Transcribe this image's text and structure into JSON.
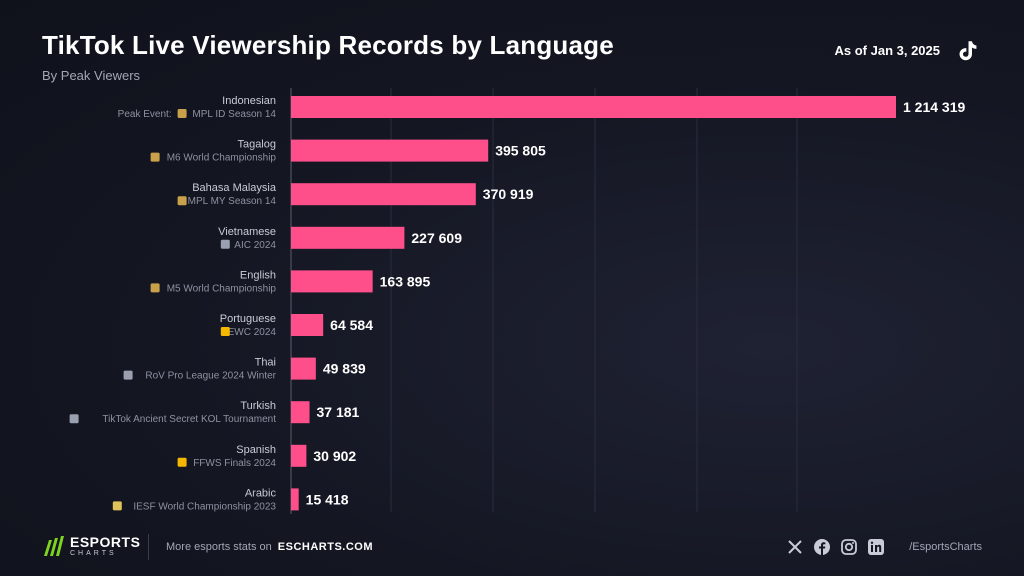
{
  "header": {
    "title": "TikTok Live Viewership Records by Language",
    "subtitle": "By Peak Viewers",
    "as_of": "As of Jan 3, 2025"
  },
  "chart_data": {
    "type": "bar",
    "orientation": "horizontal",
    "title": "TikTok Live Viewership Records by Language",
    "subtitle": "By Peak Viewers",
    "categories": [
      "Indonesian",
      "Tagalog",
      "Bahasa Malaysia",
      "Vietnamese",
      "English",
      "Portuguese",
      "Thai",
      "Turkish",
      "Spanish",
      "Arabic"
    ],
    "events": [
      "MPL ID Season 14",
      "M6 World Championship",
      "MPL MY Season 14",
      "AIC 2024",
      "M5 World Championship",
      "EWC 2024",
      "RoV Pro League 2024 Winter",
      "TikTok Ancient Secret KOL Tournament",
      "FFWS Finals 2024",
      "IESF World Championship 2023"
    ],
    "event_prefix_first": "Peak Event:",
    "event_icons": [
      "mlbb-icon",
      "mlbb-icon",
      "mlbb-icon",
      "aov-icon",
      "mlbb-icon",
      "ewc-icon",
      "aov-icon",
      "tiktok-badge-icon",
      "ffws-icon",
      "iesf-icon"
    ],
    "values": [
      1214319,
      395805,
      370919,
      227609,
      163895,
      64584,
      49839,
      37181,
      30902,
      15418
    ],
    "value_labels": [
      "1 214 319",
      "395 805",
      "370 919",
      "227 609",
      "163 895",
      "64 584",
      "49 839",
      "37 181",
      "30 902",
      "15 418"
    ],
    "xlim": [
      0,
      1214319
    ],
    "grid": true,
    "bar_color": "#ff4f8b"
  },
  "footer": {
    "brand_main": "ESPORTS",
    "brand_sub": "CHARTS",
    "more_text": "More esports stats on",
    "more_link": "ESCHARTS.COM",
    "social_icons": [
      "x-icon",
      "facebook-icon",
      "instagram-icon",
      "linkedin-icon"
    ],
    "handle": "/EsportsCharts"
  }
}
